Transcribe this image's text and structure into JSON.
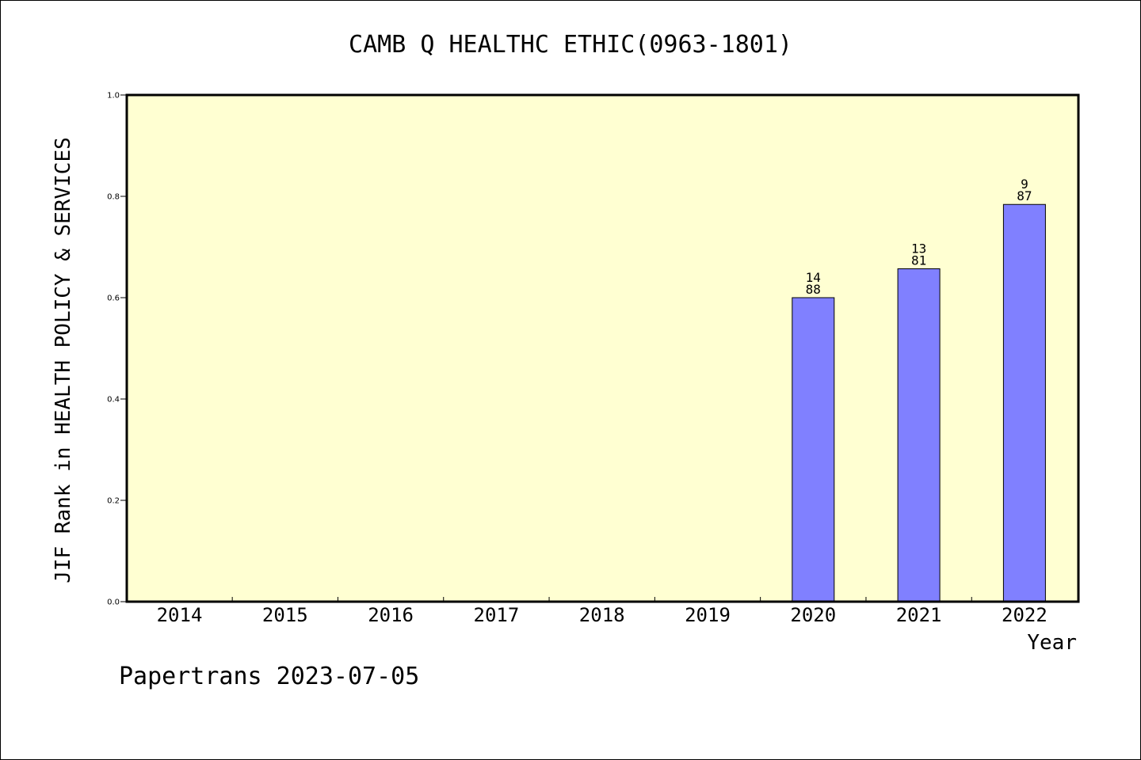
{
  "chart_data": {
    "type": "bar",
    "title": "CAMB Q HEALTHC ETHIC(0963-1801)",
    "xlabel": "Year",
    "ylabel": "JIF Rank in HEALTH POLICY & SERVICES",
    "categories": [
      "2014",
      "2015",
      "2016",
      "2017",
      "2018",
      "2019",
      "2020",
      "2021",
      "2022"
    ],
    "values": [
      null,
      null,
      null,
      null,
      null,
      null,
      0.6,
      0.657,
      0.784
    ],
    "rank_labels": [
      null,
      null,
      null,
      null,
      null,
      null,
      {
        "rank": "14",
        "total": "88"
      },
      {
        "rank": "13",
        "total": "81"
      },
      {
        "rank": "9",
        "total": "87"
      }
    ],
    "ylim": [
      0,
      1.0
    ],
    "yticks": [
      "0.0",
      "0.2",
      "0.4",
      "0.6",
      "0.8",
      "1.0"
    ],
    "grid": false,
    "colors": {
      "plot_background": "#ffffd2",
      "bar_fill": "#8080ff",
      "bar_stroke": "#000000",
      "axis": "#000000"
    }
  },
  "footer": {
    "text": "Papertrans 2023-07-05"
  }
}
